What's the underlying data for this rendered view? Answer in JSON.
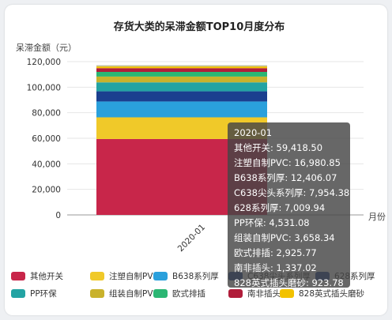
{
  "colors": {
    "background": "#ffffff",
    "tooltip_bg": "#464646",
    "series": [
      "#c8264a",
      "#f0c929",
      "#2aa0dc",
      "#1b3f8f",
      "#23a3a3",
      "#c9b22c",
      "#2bb673",
      "#b01d3a",
      "#f2c200",
      "#bfbf9a"
    ]
  },
  "chart_data": {
    "type": "bar",
    "stacked": true,
    "title": "存货大类的呆滞金额TOP10月度分布",
    "ylabel": "呆滞金额（元）",
    "xlabel": "月份",
    "categories": [
      "2020-01"
    ],
    "ylim": [
      0,
      120000
    ],
    "yticks": [
      "0",
      "20,000",
      "40,000",
      "60,000",
      "80,000",
      "100,000",
      "120,000"
    ],
    "grid": true,
    "legend_position": "bottom",
    "series": [
      {
        "name": "其他开关",
        "values": [
          59418.5
        ]
      },
      {
        "name": "注塑自制PVC",
        "values": [
          16980.85
        ]
      },
      {
        "name": "B638系列厚",
        "values": [
          12406.07
        ]
      },
      {
        "name": "C638尖头系列厚",
        "values": [
          7954.38
        ]
      },
      {
        "name": "628系列厚",
        "values": [
          7009.94
        ]
      },
      {
        "name": "PP环保",
        "values": [
          4531.08
        ]
      },
      {
        "name": "组装自制PVC",
        "values": [
          3658.34
        ]
      },
      {
        "name": "欧式排插",
        "values": [
          2925.77
        ]
      },
      {
        "name": "南非插头",
        "values": [
          1337.02
        ]
      },
      {
        "name": "828英式插头磨砂",
        "values": [
          923.78
        ]
      }
    ]
  },
  "tooltip": {
    "title": "2020-01",
    "lines": [
      "其他开关: 59,418.50",
      "注塑自制PVC: 16,980.85",
      "B638系列厚: 12,406.07",
      "C638尖头系列厚: 7,954.38",
      "628系列厚: 7,009.94",
      "PP环保: 4,531.08",
      "组装自制PVC: 3,658.34",
      "欧式排插: 2,925.77",
      "南非插头: 1,337.02",
      "828英式插头磨砂: 923.78"
    ]
  },
  "legend": [
    {
      "label": "其他开关",
      "color": "#c8264a"
    },
    {
      "label": "注塑自制PVC",
      "color": "#f0c929"
    },
    {
      "label": "B638系列厚",
      "color": "#2aa0dc"
    },
    {
      "label": "C638尖头系列厚",
      "color": "#1b3f8f"
    },
    {
      "label": "628系列厚",
      "color": "#1b3f8f"
    },
    {
      "label": "PP环保",
      "color": "#23a3a3"
    },
    {
      "label": "组装自制PVC",
      "color": "#c9b22c"
    },
    {
      "label": "欧式排插",
      "color": "#2bb673"
    },
    {
      "label": "南非插头",
      "color": "#b01d3a"
    },
    {
      "label": "828英式插头磨砂",
      "color": "#f2c200"
    }
  ]
}
